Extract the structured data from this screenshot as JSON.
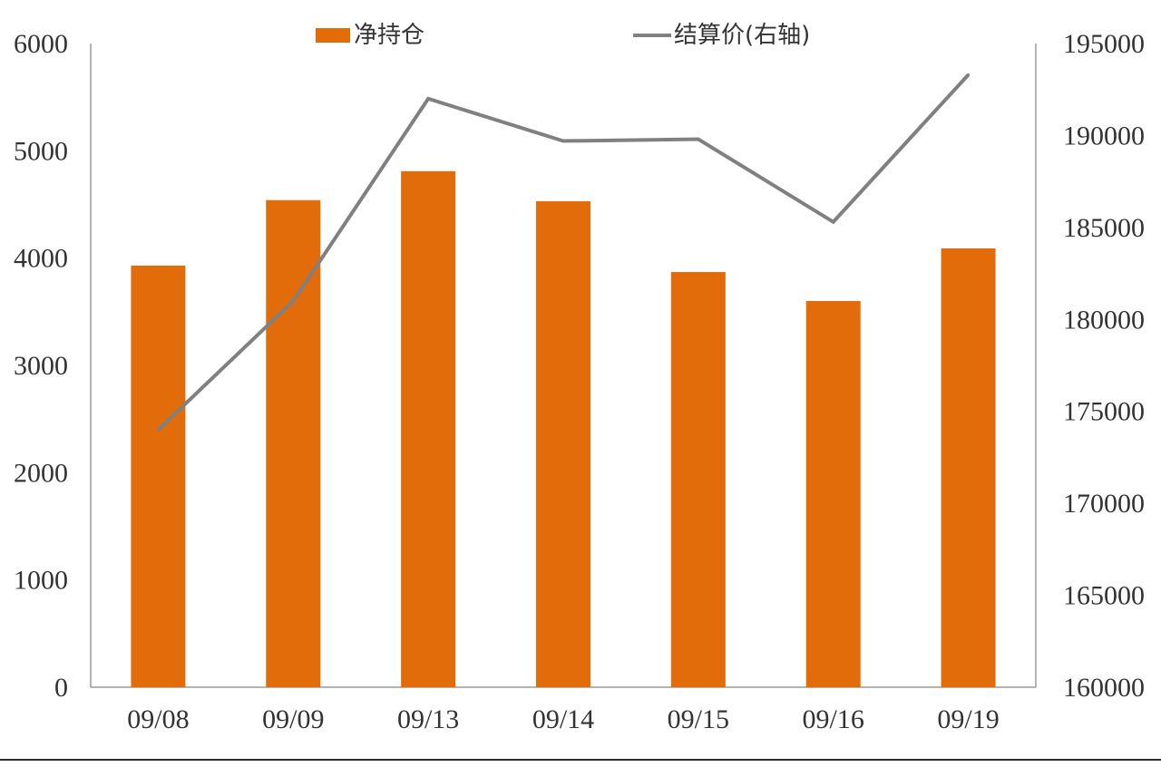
{
  "chart_data": {
    "type": "bar+line",
    "categories": [
      "09/08",
      "09/09",
      "09/13",
      "09/14",
      "09/15",
      "09/16",
      "09/19"
    ],
    "series": [
      {
        "name": "净持仓",
        "type": "bar",
        "axis": "left",
        "color": "#E36C0A",
        "values": [
          3930,
          4540,
          4810,
          4530,
          3870,
          3600,
          4090
        ]
      },
      {
        "name": "结算价(右轴)",
        "type": "line",
        "axis": "right",
        "color": "#808080",
        "values": [
          174000,
          181000,
          192000,
          189700,
          189800,
          185300,
          193300
        ]
      }
    ],
    "left_axis": {
      "ylim": [
        0,
        6000
      ],
      "ticks": [
        "0",
        "1000",
        "2000",
        "3000",
        "4000",
        "5000",
        "6000"
      ]
    },
    "right_axis": {
      "ylim": [
        160000,
        195000
      ],
      "ticks": [
        "160000",
        "165000",
        "170000",
        "175000",
        "180000",
        "185000",
        "190000",
        "195000"
      ]
    },
    "legend": {
      "position": "top",
      "items": [
        {
          "label": "净持仓",
          "swatch": "bar",
          "color": "#E36C0A"
        },
        {
          "label": "结算价(右轴)",
          "swatch": "line",
          "color": "#808080"
        }
      ]
    },
    "grid": false
  }
}
